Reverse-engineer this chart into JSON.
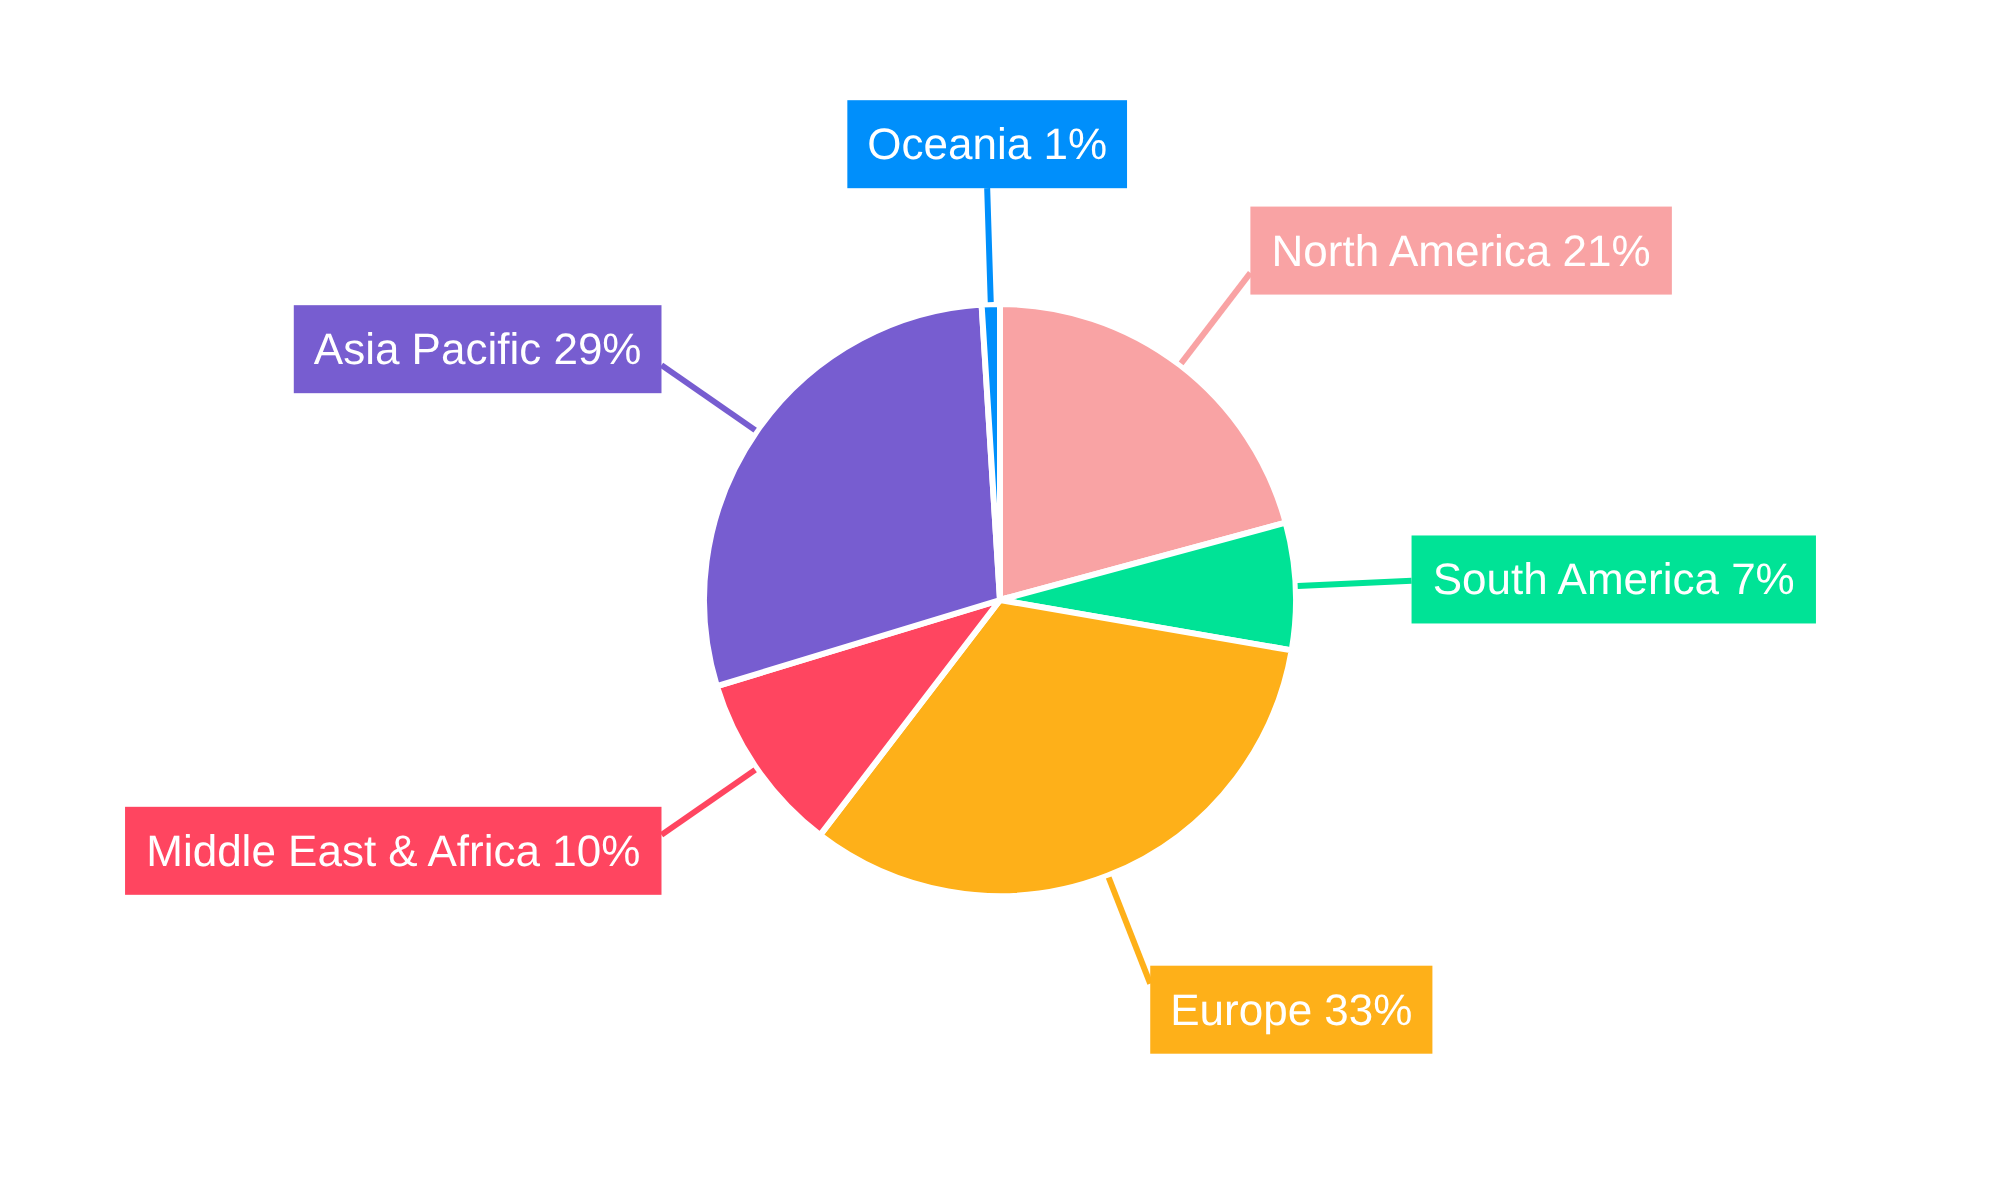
{
  "chart_data": {
    "type": "pie",
    "categories": [
      "North America",
      "South America",
      "Europe",
      "Middle East & Africa",
      "Asia Pacific",
      "Oceania"
    ],
    "values": [
      21,
      7,
      33,
      10,
      29,
      1
    ],
    "colors": [
      "#f9a3a4",
      "#00e396",
      "#feb019",
      "#ff4560",
      "#775dd0",
      "#008ffb"
    ],
    "value_labels": [
      "21%",
      "7%",
      "33%",
      "10%",
      "29%",
      "1%"
    ]
  }
}
